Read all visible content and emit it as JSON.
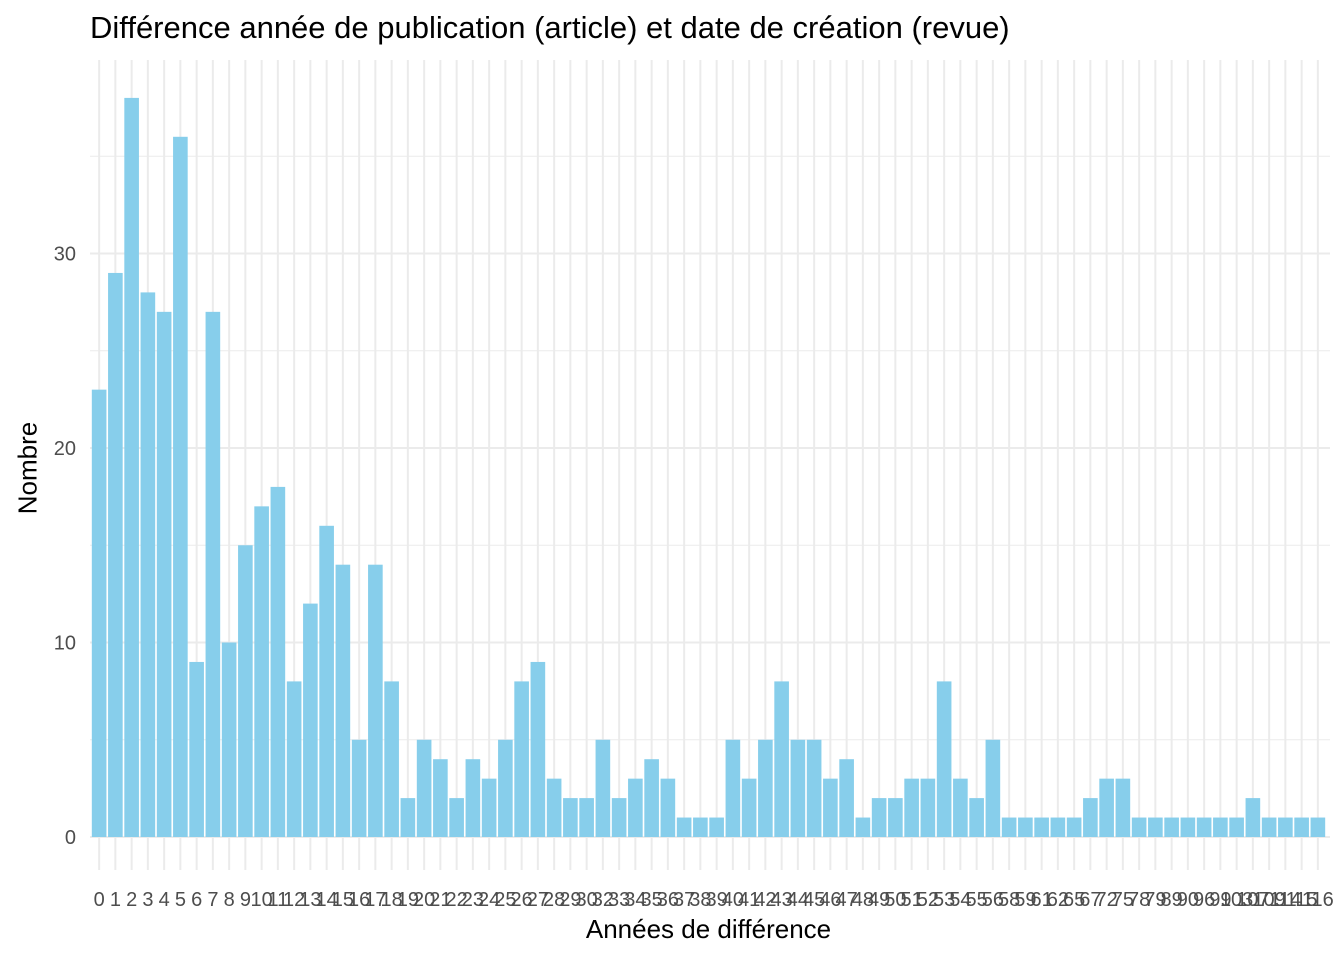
{
  "chart_data": {
    "type": "bar",
    "title": "Différence année de publication (article) et date de création (revue)",
    "xlabel": "Années de différence",
    "ylabel": "Nombre",
    "categories": [
      "0",
      "1",
      "2",
      "3",
      "4",
      "5",
      "6",
      "7",
      "8",
      "9",
      "10",
      "11",
      "12",
      "13",
      "14",
      "15",
      "16",
      "17",
      "18",
      "19",
      "20",
      "21",
      "22",
      "23",
      "24",
      "25",
      "26",
      "27",
      "28",
      "29",
      "30",
      "32",
      "33",
      "34",
      "35",
      "36",
      "37",
      "38",
      "39",
      "40",
      "41",
      "42",
      "43",
      "44",
      "45",
      "46",
      "47",
      "48",
      "49",
      "50",
      "51",
      "52",
      "53",
      "54",
      "55",
      "56",
      "58",
      "59",
      "61",
      "62",
      "65",
      "67",
      "72",
      "75",
      "78",
      "79",
      "89",
      "90",
      "96",
      "99",
      "103",
      "107",
      "109",
      "114",
      "115",
      "116"
    ],
    "values": [
      23,
      29,
      38,
      28,
      27,
      36,
      9,
      27,
      10,
      15,
      17,
      18,
      8,
      12,
      16,
      14,
      5,
      14,
      8,
      2,
      5,
      4,
      2,
      4,
      3,
      5,
      8,
      9,
      3,
      2,
      2,
      5,
      2,
      3,
      4,
      3,
      1,
      1,
      1,
      5,
      3,
      5,
      8,
      5,
      5,
      3,
      4,
      1,
      2,
      2,
      3,
      3,
      8,
      3,
      2,
      5,
      1,
      1,
      1,
      1,
      1,
      2,
      3,
      3,
      1,
      1,
      1,
      1,
      1,
      1,
      1,
      2,
      1,
      1,
      1,
      1
    ],
    "ylim": [
      0,
      40
    ],
    "yticks": [
      0,
      10,
      20,
      30
    ],
    "grid": true,
    "bar_color": "#87CEEB",
    "grid_color": "#ebebeb",
    "tick_label_color": "#4d4d4d"
  }
}
